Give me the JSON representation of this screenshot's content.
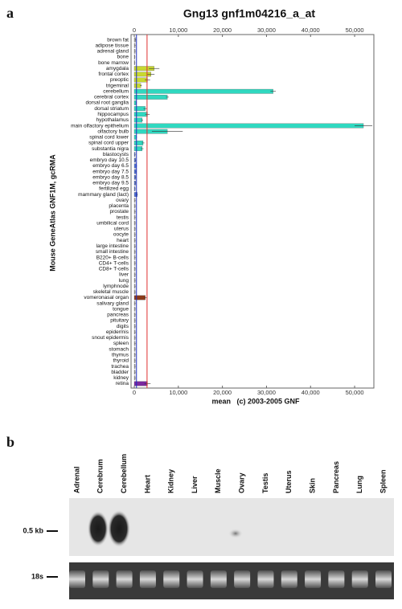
{
  "panel_labels": [
    "a",
    "b"
  ],
  "chart_data": {
    "type": "bar",
    "orientation": "horizontal",
    "title": "Gng13 gnf1m04216_a_at",
    "y_label": "Mouse GeneAtlas GNF1M, gcRMA",
    "x_label": "mean   (c) 2003-2005 GNF",
    "categories": [
      "brown fat",
      "adipose tissue",
      "adrenal gland",
      "bone",
      "bone marrow",
      "amygdala",
      "frontal cortex",
      "preoptic",
      "trigeminal",
      "cerebellum",
      "cerebral cortex",
      "dorsal root ganglia",
      "dorsal striatum",
      "hippocampus",
      "hypothalamus",
      "main olfactory epithelium",
      "olfactory bulb",
      "spinal cord lower",
      "spinal cord upper",
      "substantia nigra",
      "blastocysts",
      "embryo day 10.5",
      "embryo day 6.5",
      "embryo day 7.5",
      "embryo day 8.5",
      "embryo day 9.5",
      "fertilized egg",
      "mammary gland (lact)",
      "ovary",
      "placenta",
      "prostate",
      "testis",
      "umbilical cord",
      "uterus",
      "oocyte",
      "heart",
      "large intestine",
      "small intestine",
      "B220+ B-cells",
      "CD4+ T-cells",
      "CD8+ T-cells",
      "liver",
      "lung",
      "lymphnode",
      "skeletal muscle",
      "vomeronasal organ",
      "salivary gland",
      "tongue",
      "pancreas",
      "pituitary",
      "digits",
      "epidermis",
      "snout epidermis",
      "spleen",
      "stomach",
      "thymus",
      "thyroid",
      "trachea",
      "bladder",
      "kidney",
      "retina"
    ],
    "values": [
      300,
      200,
      200,
      150,
      150,
      4500,
      3800,
      3000,
      1500,
      31500,
      7500,
      400,
      2500,
      3000,
      1800,
      52000,
      7500,
      500,
      2000,
      1800,
      200,
      300,
      500,
      400,
      300,
      300,
      200,
      700,
      200,
      200,
      200,
      200,
      200,
      200,
      200,
      200,
      200,
      200,
      200,
      200,
      200,
      200,
      200,
      200,
      200,
      2500,
      200,
      200,
      200,
      200,
      200,
      200,
      200,
      200,
      200,
      200,
      200,
      200,
      200,
      200,
      3000
    ],
    "errors": [
      100,
      100,
      100,
      100,
      100,
      1200,
      800,
      600,
      200,
      600,
      300,
      100,
      400,
      500,
      200,
      2000,
      3500,
      100,
      300,
      300,
      100,
      100,
      100,
      100,
      100,
      100,
      100,
      100,
      100,
      100,
      100,
      100,
      100,
      100,
      100,
      100,
      100,
      100,
      100,
      100,
      100,
      100,
      100,
      100,
      100,
      300,
      100,
      100,
      100,
      100,
      100,
      100,
      100,
      100,
      100,
      100,
      100,
      100,
      100,
      100,
      700
    ],
    "colors": [
      "#a0a0a0",
      "#a0a0a0",
      "#a0a0a0",
      "#a0a0a0",
      "#a0a0a0",
      "#c8d830",
      "#c8d830",
      "#c8d830",
      "#c8d830",
      "#30d8c0",
      "#30d8c0",
      "#30d8c0",
      "#30d8c0",
      "#30d8c0",
      "#30d8c0",
      "#30d8c0",
      "#30d8c0",
      "#30d8c0",
      "#30d8c0",
      "#30d8c0",
      "#5070d0",
      "#5070d0",
      "#5070d0",
      "#5070d0",
      "#5070d0",
      "#5070d0",
      "#5070d0",
      "#5070d0",
      "#a0a0a0",
      "#a0a0a0",
      "#a0a0a0",
      "#a0a0a0",
      "#a0a0a0",
      "#a0a0a0",
      "#a0a0a0",
      "#a0a0a0",
      "#a0a0a0",
      "#a0a0a0",
      "#a0a0a0",
      "#a0a0a0",
      "#a0a0a0",
      "#a0a0a0",
      "#a0a0a0",
      "#a0a0a0",
      "#a0a0a0",
      "#8b3a1a",
      "#a0a0a0",
      "#a0a0a0",
      "#a0a0a0",
      "#a0a0a0",
      "#a0a0a0",
      "#a0a0a0",
      "#a0a0a0",
      "#a0a0a0",
      "#a0a0a0",
      "#a0a0a0",
      "#a0a0a0",
      "#a0a0a0",
      "#a0a0a0",
      "#a0a0a0",
      "#7a2aa0"
    ],
    "xlim": [
      0,
      54000
    ],
    "xticks": [
      0,
      {
        "value": 10000,
        "label": "10,000"
      },
      {
        "value": 20000,
        "label": "20,000"
      },
      {
        "value": 30000,
        "label": "30,000"
      },
      {
        "value": 40000,
        "label": "40,000"
      },
      {
        "value": 50000,
        "label": "50,000"
      }
    ],
    "reference_lines": [
      {
        "value": 500,
        "color": "#2030c0"
      },
      {
        "value": 2900,
        "color": "#e03030"
      }
    ]
  },
  "blot": {
    "lanes": [
      "Adrenal",
      "Cerebrum",
      "Cerebellum",
      "Heart",
      "Kidney",
      "Liver",
      "Muscle",
      "Ovary",
      "Testis",
      "Uterus",
      "Skin",
      "Pancreas",
      "Lung",
      "Spleen"
    ],
    "markers": [
      "0.5 kb",
      "18s"
    ]
  }
}
